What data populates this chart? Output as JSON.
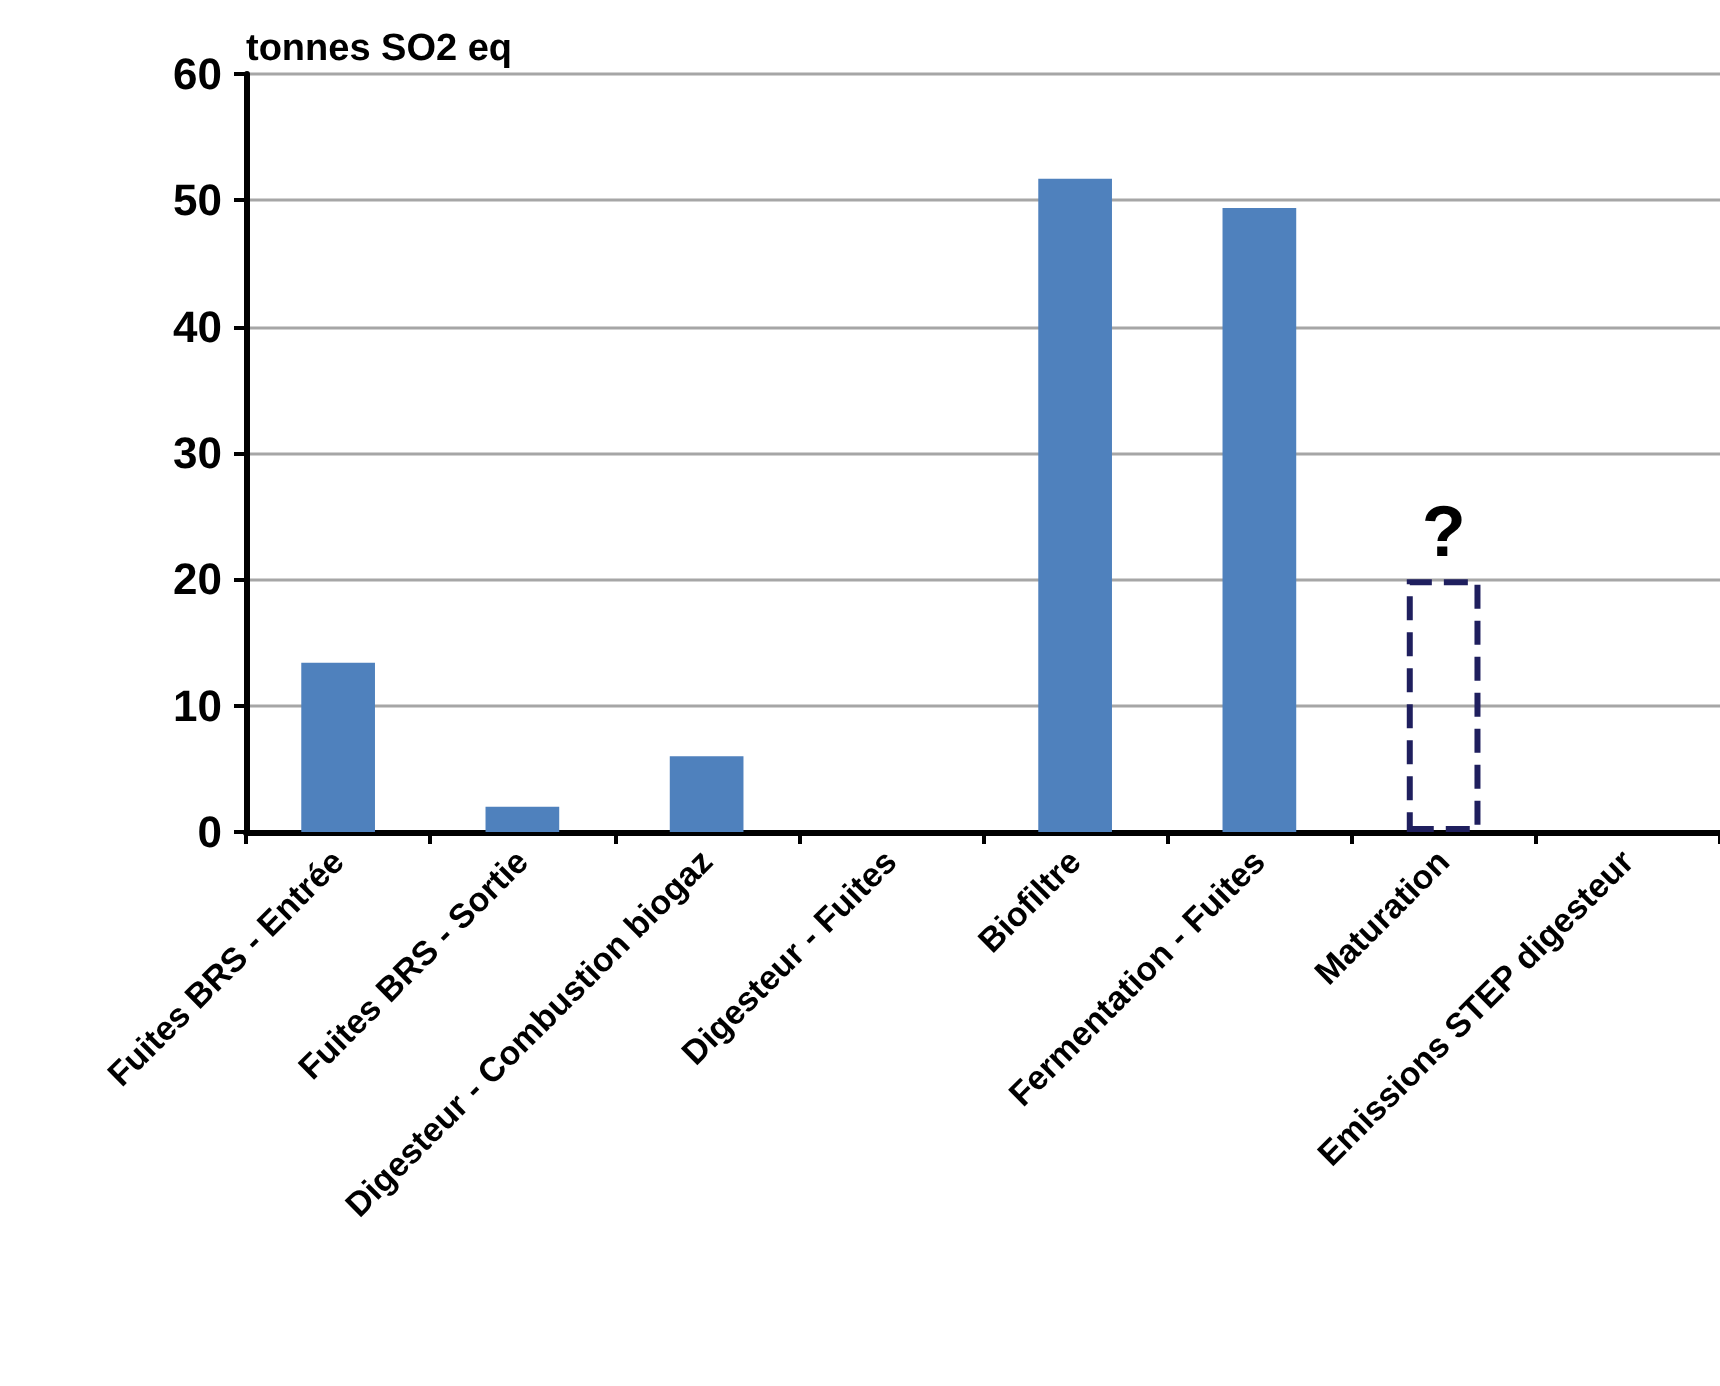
{
  "chart_data": {
    "type": "bar",
    "ylabel": "tonnes SO2 eq",
    "categories": [
      "Fuites BRS - Entrée",
      "Fuites BRS - Sortie",
      "Digesteur - Combustion biogaz",
      "Digesteur - Fuites",
      "Biofiltre",
      "Fermentation - Fuites",
      "Maturation",
      "Emissions STEP digesteur"
    ],
    "series": [
      {
        "color": "#4f81bd",
        "values": [
          13.4,
          2,
          6,
          0,
          51.7,
          49.4,
          null,
          0
        ]
      },
      {
        "color": "#1f1f5e",
        "line_style": "dashed",
        "values": [
          null,
          null,
          null,
          null,
          null,
          null,
          20,
          null
        ]
      }
    ],
    "ylim": [
      0,
      60
    ],
    "yticks": [
      0,
      10,
      20,
      30,
      40,
      50,
      60
    ],
    "grid": "y",
    "annotations": [
      "?"
    ]
  }
}
